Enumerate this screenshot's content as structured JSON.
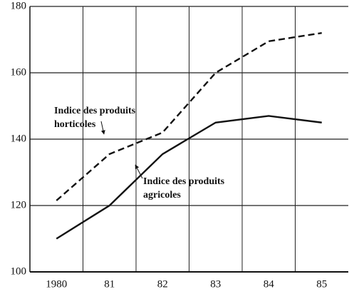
{
  "chart_data": {
    "type": "line",
    "categories": [
      "1980",
      "81",
      "82",
      "83",
      "84",
      "85"
    ],
    "series": [
      {
        "name": "Indice des produits horticoles",
        "color": "#111111",
        "dash": true,
        "values": [
          121.5,
          135.5,
          142,
          160,
          169.5,
          172
        ]
      },
      {
        "name": "Indice des produits agricoles",
        "color": "#111111",
        "dash": false,
        "values": [
          110,
          120,
          135.5,
          145,
          147,
          145
        ]
      }
    ],
    "ylim": [
      100,
      180
    ],
    "yticks": [
      100,
      120,
      140,
      160,
      180
    ],
    "grid": true
  }
}
